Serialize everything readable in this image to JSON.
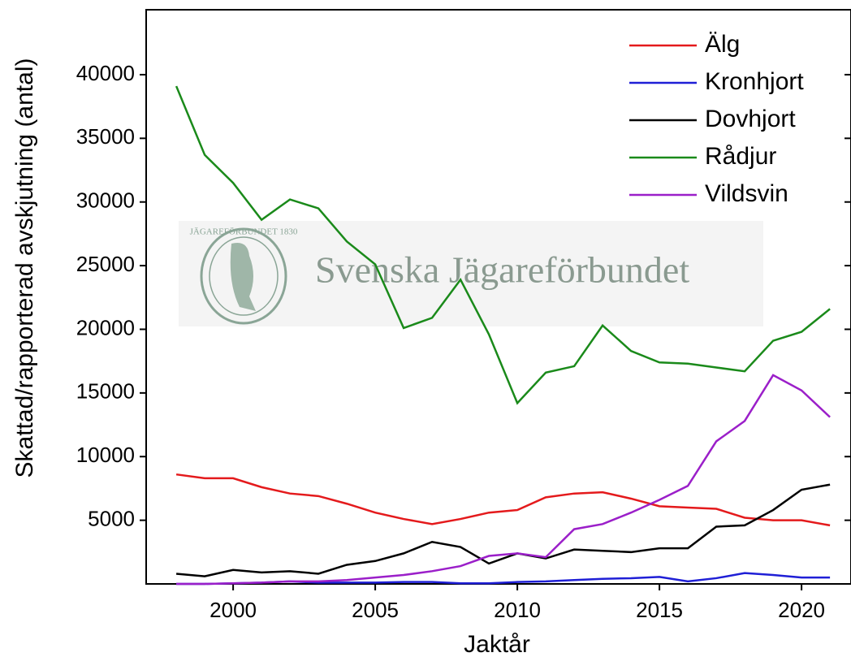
{
  "chart_data": {
    "type": "line",
    "x_label": "Jaktår",
    "y_label": "Skattad/rapporterad avskjutning (antal)",
    "watermark": "Svenska Jägareförbundet",
    "watermark_logo": "JÄGAREFÖRBUNDET 1830",
    "x": [
      1998,
      1999,
      2000,
      2001,
      2002,
      2003,
      2004,
      2005,
      2006,
      2007,
      2008,
      2009,
      2010,
      2011,
      2012,
      2013,
      2014,
      2015,
      2016,
      2017,
      2018,
      2019,
      2020,
      2021
    ],
    "series": [
      {
        "name": "Älg",
        "color": "#e41a1c",
        "values": [
          8600,
          8300,
          8300,
          7600,
          7100,
          6900,
          6300,
          5600,
          5100,
          4700,
          5100,
          5600,
          5800,
          6800,
          7100,
          7200,
          6700,
          6100,
          6000,
          5900,
          5200,
          5000,
          5000,
          4600
        ]
      },
      {
        "name": "Kronhjort",
        "color": "#1f1fd6",
        "values": [
          0,
          0,
          50,
          100,
          200,
          100,
          100,
          100,
          150,
          150,
          50,
          50,
          150,
          200,
          300,
          400,
          450,
          550,
          200,
          450,
          850,
          700,
          500,
          500
        ]
      },
      {
        "name": "Dovhjort",
        "color": "#000000",
        "values": [
          800,
          600,
          1100,
          900,
          1000,
          800,
          1500,
          1800,
          2400,
          3300,
          2900,
          1600,
          2400,
          2000,
          2700,
          2600,
          2500,
          2800,
          2800,
          4500,
          4600,
          5800,
          7400,
          7800
        ]
      },
      {
        "name": "Rådjur",
        "color": "#1a8a1a",
        "values": [
          39100,
          33700,
          31500,
          28600,
          30200,
          29500,
          26900,
          25100,
          20100,
          20900,
          23900,
          19600,
          14200,
          16600,
          17100,
          20300,
          18300,
          17400,
          17300,
          17000,
          16700,
          19100,
          19800,
          21600
        ]
      },
      {
        "name": "Vildsvin",
        "color": "#9b1fc9",
        "values": [
          0,
          0,
          50,
          100,
          200,
          200,
          300,
          500,
          700,
          1000,
          1400,
          2200,
          2400,
          2100,
          4300,
          4700,
          5600,
          6600,
          7700,
          11200,
          12800,
          16400,
          15200,
          13100
        ]
      }
    ],
    "xlim": [
      1996.94,
      2021.74
    ],
    "ylim": [
      0,
      45100
    ],
    "xticks": [
      2000,
      2005,
      2010,
      2015,
      2020
    ],
    "yticks": [
      5000,
      10000,
      15000,
      20000,
      25000,
      30000,
      35000,
      40000
    ],
    "legend": "upper right"
  }
}
